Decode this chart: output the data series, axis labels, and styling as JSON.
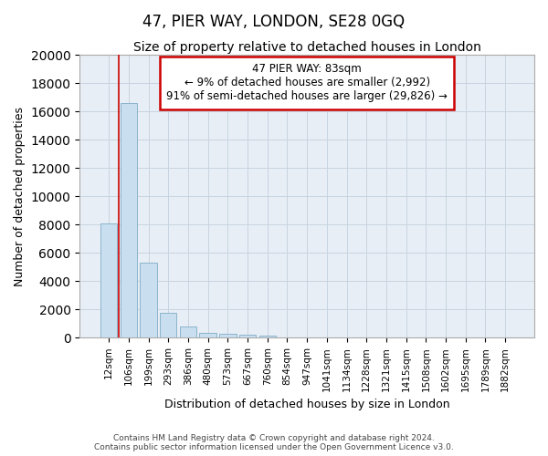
{
  "title": "47, PIER WAY, LONDON, SE28 0GQ",
  "subtitle": "Size of property relative to detached houses in London",
  "xlabel": "Distribution of detached houses by size in London",
  "ylabel": "Number of detached properties",
  "categories": [
    "12sqm",
    "106sqm",
    "199sqm",
    "293sqm",
    "386sqm",
    "480sqm",
    "573sqm",
    "667sqm",
    "760sqm",
    "854sqm",
    "947sqm",
    "1041sqm",
    "1134sqm",
    "1228sqm",
    "1321sqm",
    "1415sqm",
    "1508sqm",
    "1602sqm",
    "1695sqm",
    "1789sqm",
    "1882sqm"
  ],
  "values": [
    8100,
    16600,
    5300,
    1750,
    800,
    350,
    260,
    220,
    170,
    0,
    0,
    0,
    0,
    0,
    0,
    0,
    0,
    0,
    0,
    0,
    0
  ],
  "bar_color": "#c9dff0",
  "bar_edge_color": "#8ab4cc",
  "property_line_color": "#cc0000",
  "annotation_text": "47 PIER WAY: 83sqm\n← 9% of detached houses are smaller (2,992)\n91% of semi-detached houses are larger (29,826) →",
  "annotation_box_color": "#ffffff",
  "annotation_box_edge": "#cc0000",
  "ylim": [
    0,
    20000
  ],
  "yticks": [
    0,
    2000,
    4000,
    6000,
    8000,
    10000,
    12000,
    14000,
    16000,
    18000,
    20000
  ],
  "background_color": "#e8eef5",
  "grid_color": "#c8d4e0",
  "footer_line1": "Contains HM Land Registry data © Crown copyright and database right 2024.",
  "footer_line2": "Contains public sector information licensed under the Open Government Licence v3.0.",
  "title_fontsize": 12,
  "subtitle_fontsize": 10,
  "ylabel_fontsize": 9,
  "xlabel_fontsize": 9,
  "tick_fontsize": 7.5,
  "footer_fontsize": 6.5
}
